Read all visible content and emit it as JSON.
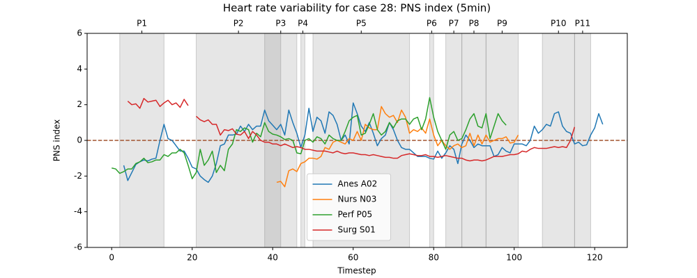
{
  "chart_data": {
    "type": "line",
    "title": "Heart rate variability for case 28: PNS index (5min)",
    "x_label": "Timestep",
    "y_label": "PNS index",
    "xlim": [
      -6.1,
      128.1
    ],
    "xticks": [
      0,
      20,
      40,
      60,
      80,
      100,
      120
    ],
    "ylim": [
      -6,
      6
    ],
    "yticks": [
      -6,
      -4,
      -2,
      0,
      2,
      4,
      6
    ],
    "reference_line": {
      "value": 0,
      "color": "#a0522d"
    },
    "legend": "lower center",
    "phases": [
      {
        "label": "P1",
        "start": 2,
        "end": 13
      },
      {
        "label": "P2",
        "start": 21,
        "end": 42
      },
      {
        "label": "P3",
        "start": 38,
        "end": 46
      },
      {
        "label": "P4",
        "start": 47,
        "end": 48
      },
      {
        "label": "P5",
        "start": 50,
        "end": 74
      },
      {
        "label": "P6",
        "start": 79,
        "end": 80
      },
      {
        "label": "P7",
        "start": 83,
        "end": 87
      },
      {
        "label": "P8",
        "start": 87,
        "end": 93
      },
      {
        "label": "P9",
        "start": 93,
        "end": 101
      },
      {
        "label": "P10",
        "start": 107,
        "end": 115
      },
      {
        "label": "P11",
        "start": 115,
        "end": 119
      }
    ],
    "x": [
      0,
      1,
      2,
      3,
      4,
      5,
      6,
      7,
      8,
      9,
      10,
      11,
      12,
      13,
      14,
      15,
      16,
      17,
      18,
      19,
      20,
      21,
      22,
      23,
      24,
      25,
      26,
      27,
      28,
      29,
      30,
      31,
      32,
      33,
      34,
      35,
      36,
      37,
      38,
      39,
      40,
      41,
      42,
      43,
      44,
      45,
      46,
      47,
      48,
      49,
      50,
      51,
      52,
      53,
      54,
      55,
      56,
      57,
      58,
      59,
      60,
      61,
      62,
      63,
      64,
      65,
      66,
      67,
      68,
      69,
      70,
      71,
      72,
      73,
      74,
      75,
      76,
      77,
      78,
      79,
      80,
      81,
      82,
      83,
      84,
      85,
      86,
      87,
      88,
      89,
      90,
      91,
      92,
      93,
      94,
      95,
      96,
      97,
      98,
      99,
      100,
      101,
      102,
      103,
      104,
      105,
      106,
      107,
      108,
      109,
      110,
      111,
      112,
      113,
      114,
      115,
      116,
      117,
      118,
      119,
      120,
      121,
      122
    ],
    "series": [
      {
        "name": "Anes A02",
        "color": "#1f77b4",
        "values": [
          null,
          null,
          null,
          -1.4,
          -2.25,
          -1.8,
          -1.35,
          -1.2,
          -1.1,
          -1.15,
          -1.05,
          -1.0,
          0.0,
          0.9,
          0.1,
          0.0,
          -0.3,
          -0.6,
          -0.6,
          -1.0,
          -1.5,
          -1.6,
          -2.0,
          -2.2,
          -2.35,
          -2.0,
          -1.3,
          -0.3,
          -0.2,
          0.3,
          0.3,
          0.35,
          0.8,
          0.5,
          0.9,
          0.6,
          0.8,
          0.8,
          1.7,
          1.1,
          0.85,
          0.6,
          0.9,
          0.3,
          1.7,
          1.0,
          0.4,
          -0.4,
          0.3,
          1.8,
          0.5,
          1.3,
          1.1,
          0.4,
          1.6,
          1.4,
          0.9,
          0.0,
          0.3,
          -0.2,
          2.1,
          1.5,
          0.8,
          0.5,
          1.0,
          0.4,
          -0.3,
          0.1,
          0.3,
          1.0,
          0.6,
          0.0,
          -0.4,
          -0.5,
          -0.5,
          -0.7,
          -0.9,
          -0.9,
          -0.9,
          -1.0,
          -1.05,
          -0.6,
          -1.0,
          -0.7,
          -0.3,
          -0.5,
          -1.3,
          -0.2,
          0.3,
          0.0,
          -0.4,
          -0.2,
          -0.3,
          -0.3,
          -0.3,
          -0.9,
          -0.8,
          -0.4,
          -0.6,
          -0.7,
          -0.2,
          -0.2,
          -0.2,
          -0.3,
          0.0,
          0.8,
          0.4,
          0.6,
          0.9,
          0.8,
          1.5,
          1.6,
          0.8,
          0.5,
          0.4,
          -0.2,
          -0.1,
          -0.3,
          -0.25,
          0.3,
          0.7,
          1.5,
          0.9
        ]
      },
      {
        "name": "Nurs N03",
        "color": "#ff7f0e",
        "values": [
          null,
          null,
          null,
          null,
          null,
          null,
          null,
          null,
          null,
          null,
          null,
          null,
          null,
          null,
          null,
          null,
          null,
          null,
          null,
          null,
          null,
          null,
          null,
          null,
          null,
          null,
          null,
          null,
          null,
          null,
          null,
          null,
          null,
          null,
          null,
          null,
          null,
          null,
          null,
          null,
          null,
          -2.35,
          -2.3,
          -2.6,
          -1.7,
          -1.6,
          -1.75,
          -1.3,
          -1.2,
          -1.0,
          -1.0,
          -1.05,
          -0.9,
          -0.4,
          -0.5,
          -0.1,
          0.0,
          -0.1,
          -0.2,
          0.1,
          0.0,
          0.5,
          0.0,
          0.9,
          0.7,
          0.6,
          0.6,
          1.9,
          1.5,
          1.3,
          1.4,
          1.0,
          1.7,
          1.3,
          0.4,
          0.6,
          0.5,
          0.7,
          0.4,
          1.2,
          0.3,
          -0.3,
          0.0,
          -0.3,
          -0.5,
          -0.3,
          -0.2,
          -0.4,
          -0.3,
          0.4,
          -0.3,
          0.3,
          -0.2,
          0.3,
          -0.1,
          0.0,
          0.1,
          0.1,
          0.2,
          -0.15,
          -0.1,
          0.3,
          null,
          null,
          null,
          null,
          null,
          null,
          null,
          null,
          null,
          null,
          null,
          null,
          null,
          null,
          null,
          null,
          null,
          null,
          null,
          null,
          null
        ]
      },
      {
        "name": "Perf P05",
        "color": "#2ca02c",
        "values": [
          -1.55,
          -1.6,
          -1.85,
          -1.75,
          -1.6,
          -1.6,
          -1.3,
          -1.2,
          -1.0,
          -1.25,
          -1.2,
          -1.1,
          -1.1,
          -0.8,
          -0.9,
          -0.7,
          -0.7,
          -0.5,
          -0.7,
          -1.4,
          -2.15,
          -1.8,
          -0.5,
          -1.4,
          -1.1,
          -0.6,
          -1.8,
          -1.4,
          -1.7,
          -0.5,
          -0.2,
          0.6,
          0.5,
          0.7,
          0.6,
          -0.1,
          0.4,
          0.2,
          1.0,
          0.5,
          0.35,
          0.3,
          0.2,
          0.05,
          0.1,
          0.0,
          -0.7,
          -0.75,
          0.0,
          0.1,
          -0.1,
          0.2,
          0.1,
          -0.2,
          0.3,
          0.1,
          0.0,
          0.0,
          0.5,
          1.1,
          1.3,
          1.4,
          0.3,
          0.4,
          0.9,
          1.5,
          0.6,
          0.3,
          0.5,
          1.0,
          0.7,
          1.1,
          1.2,
          1.2,
          0.9,
          1.2,
          1.3,
          0.6,
          1.2,
          2.4,
          1.3,
          0.5,
          0.0,
          -0.5,
          0.3,
          0.5,
          0.0,
          0.1,
          0.6,
          1.2,
          1.5,
          0.8,
          0.7,
          1.5,
          0.1,
          0.8,
          1.5,
          1.1,
          0.85,
          null,
          null,
          null,
          null,
          null,
          null,
          null,
          null,
          null,
          null,
          null,
          null,
          null,
          null,
          null,
          null,
          null,
          null,
          null,
          null,
          null,
          null,
          null,
          null
        ]
      },
      {
        "name": "Surg S01",
        "color": "#d62728",
        "values": [
          null,
          null,
          null,
          null,
          2.2,
          2.0,
          2.05,
          1.8,
          2.35,
          2.15,
          2.2,
          2.25,
          1.9,
          2.1,
          2.25,
          2.0,
          2.1,
          1.85,
          2.3,
          1.95,
          null,
          1.35,
          1.15,
          1.05,
          1.15,
          0.9,
          0.9,
          0.3,
          0.6,
          0.55,
          0.65,
          0.35,
          0.3,
          0.5,
          0.1,
          0.5,
          0.3,
          0.0,
          -0.1,
          -0.1,
          -0.2,
          -0.2,
          -0.3,
          -0.2,
          -0.3,
          -0.4,
          -0.35,
          -0.4,
          -0.5,
          -0.5,
          -0.55,
          -0.6,
          -0.6,
          -0.6,
          -0.65,
          -0.7,
          -0.6,
          -0.7,
          -0.75,
          -0.7,
          -0.7,
          -0.75,
          -0.8,
          -0.8,
          -0.85,
          -0.8,
          -0.85,
          -0.9,
          -0.95,
          -0.95,
          -1.0,
          -1.0,
          -0.85,
          -0.8,
          -0.75,
          -0.8,
          -0.85,
          -0.85,
          -0.8,
          -0.9,
          -0.9,
          -0.95,
          -0.9,
          -0.85,
          -0.9,
          -0.95,
          -1.0,
          -1.0,
          -1.1,
          -1.15,
          -1.1,
          -1.1,
          -1.15,
          -1.1,
          -1.0,
          -0.9,
          -0.9,
          -0.9,
          -0.85,
          -0.8,
          -0.8,
          -0.75,
          -0.6,
          -0.65,
          -0.5,
          -0.4,
          -0.45,
          -0.45,
          -0.45,
          -0.4,
          -0.35,
          -0.4,
          -0.35,
          -0.4,
          0.0,
          0.75,
          null,
          null,
          null,
          null,
          null,
          null,
          null
        ]
      }
    ]
  }
}
